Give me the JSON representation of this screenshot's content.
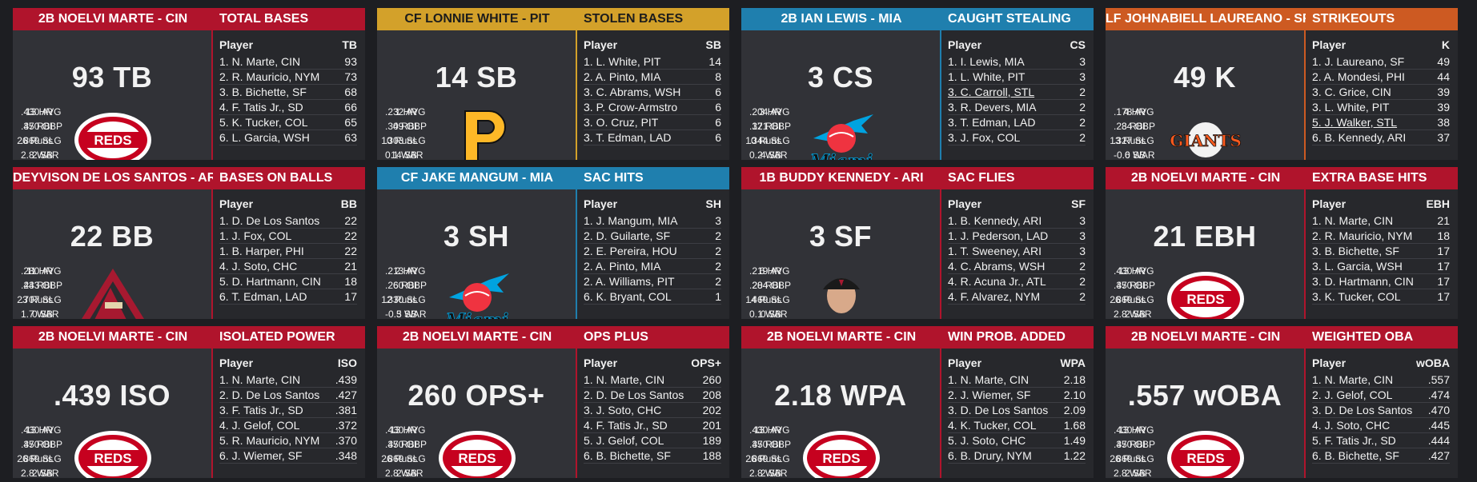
{
  "cards": [
    {
      "player": "2B NOELVI MARTE - CIN",
      "category": "TOTAL BASES",
      "big": "93 TB",
      "theme": "red",
      "logo": "reds-logo",
      "stats_left": [
        ".430 AVG",
        ".470 OBP",
        ".869 SLG",
        "2.8 WAR"
      ],
      "stats_right": [
        "13 HR",
        "35 RBI",
        "26 Runs",
        "2 SB"
      ],
      "col_player": "Player",
      "col_stat": "TB",
      "rows": [
        {
          "name": "1. N. Marte, CIN",
          "value": "93"
        },
        {
          "name": "2. R. Mauricio, NYM",
          "value": "73"
        },
        {
          "name": "3. B. Bichette, SF",
          "value": "68"
        },
        {
          "name": "4. F. Tatis Jr., SD",
          "value": "66"
        },
        {
          "name": "5. K. Tucker, COL",
          "value": "65"
        },
        {
          "name": "6. L. Garcia, WSH",
          "value": "63"
        }
      ]
    },
    {
      "player": "CF LONNIE WHITE - PIT",
      "category": "STOLEN BASES",
      "big": "14 SB",
      "theme": "gold",
      "logo": "pirates-logo",
      "stats_left": [
        ".232 AVG",
        ".309 OBP",
        ".303 SLG",
        "0.1 WAR"
      ],
      "stats_right": [
        "1 HR",
        "4 RBI",
        "10 Runs",
        "14 SB"
      ],
      "col_player": "Player",
      "col_stat": "SB",
      "rows": [
        {
          "name": "1. L. White, PIT",
          "value": "14"
        },
        {
          "name": "2. A. Pinto, MIA",
          "value": "8"
        },
        {
          "name": "3. C. Abrams, WSH",
          "value": "6"
        },
        {
          "name": "3. P. Crow-Armstro",
          "value": "6"
        },
        {
          "name": "3. O. Cruz, PIT",
          "value": "6"
        },
        {
          "name": "3. T. Edman, LAD",
          "value": "6"
        }
      ]
    },
    {
      "player": "2B IAN LEWIS - MIA",
      "category": "CAUGHT STEALING",
      "big": "3 CS",
      "theme": "blue",
      "logo": "marlins-logo",
      "logo_text": "Miami",
      "stats_left": [
        ".204 AVG",
        ".321 OBP",
        ".344 SLG",
        "0.2 WAR"
      ],
      "stats_right": [
        "3 HR",
        "17 RBI",
        "10 Runs",
        "4 SB"
      ],
      "col_player": "Player",
      "col_stat": "CS",
      "rows": [
        {
          "name": "1. I. Lewis, MIA",
          "value": "3"
        },
        {
          "name": "1. L. White, PIT",
          "value": "3"
        },
        {
          "name": "3. C. Carroll, STL",
          "value": "2",
          "hl": true
        },
        {
          "name": "3. R. Devers, MIA",
          "value": "2"
        },
        {
          "name": "3. T. Edman, LAD",
          "value": "2"
        },
        {
          "name": "3. J. Fox, COL",
          "value": "2"
        }
      ]
    },
    {
      "player": "LF JOHNABIELL LAUREANO - SF",
      "category": "STRIKEOUTS",
      "big": "49 K",
      "theme": "orange",
      "logo": "giants-logo",
      "logo_text": "GIANTS",
      "stats_left": [
        ".178 AVG",
        ".234 OBP",
        ".327 SLG",
        "-0.6 WAR"
      ],
      "stats_right": [
        "4 HR",
        "8 RBI",
        "13 Runs",
        "0 SB"
      ],
      "col_player": "Player",
      "col_stat": "K",
      "rows": [
        {
          "name": "1. J. Laureano, SF",
          "value": "49"
        },
        {
          "name": "2. A. Mondesi, PHI",
          "value": "44"
        },
        {
          "name": "3. C. Grice, CIN",
          "value": "39"
        },
        {
          "name": "3. L. White, PIT",
          "value": "39"
        },
        {
          "name": "5. J. Walker, STL",
          "value": "38",
          "hl": true
        },
        {
          "name": "6. B. Kennedy, ARI",
          "value": "37"
        }
      ]
    },
    {
      "player": "DEYVISON DE LOS SANTOS - ARI",
      "category": "BASES ON BALLS",
      "big": "22 BB",
      "theme": "red",
      "logo": "diamondbacks-logo",
      "stats_left": [
        ".280 AVG",
        ".433 OBP",
        ".707 SLG",
        "1.7 WAR"
      ],
      "stats_right": [
        "11 HR",
        "24 RBI",
        "23 Runs",
        "0 SB"
      ],
      "col_player": "Player",
      "col_stat": "BB",
      "rows": [
        {
          "name": "1. D. De Los Santos",
          "value": "22"
        },
        {
          "name": "1. J. Fox, COL",
          "value": "22"
        },
        {
          "name": "1. B. Harper, PHI",
          "value": "22"
        },
        {
          "name": "4. J. Soto, CHC",
          "value": "21"
        },
        {
          "name": "5. D. Hartmann, CIN",
          "value": "18"
        },
        {
          "name": "6. T. Edman, LAD",
          "value": "17"
        }
      ]
    },
    {
      "player": "CF JAKE MANGUM - MIA",
      "category": "SAC HITS",
      "big": "3 SH",
      "theme": "blue",
      "logo": "marlins-logo",
      "logo_text": "Miami",
      "stats_left": [
        ".213 AVG",
        ".260 OBP",
        ".330 SLG",
        "-0.3 WAR"
      ],
      "stats_right": [
        "2 HR",
        "6 RBI",
        "12 Runs",
        "5 SB"
      ],
      "col_player": "Player",
      "col_stat": "SH",
      "rows": [
        {
          "name": "1. J. Mangum, MIA",
          "value": "3"
        },
        {
          "name": "2. D. Guilarte, SF",
          "value": "2"
        },
        {
          "name": "2. E. Pereira, HOU",
          "value": "2"
        },
        {
          "name": "2. A. Pinto, MIA",
          "value": "2"
        },
        {
          "name": "2. A. Williams, PIT",
          "value": "2"
        },
        {
          "name": "6. K. Bryant, COL",
          "value": "1"
        }
      ]
    },
    {
      "player": "1B BUDDY KENNEDY - ARI",
      "category": "SAC FLIES",
      "big": "3 SF",
      "theme": "red",
      "logo": "player-photo",
      "stats_left": [
        ".219 AVG",
        ".284 OBP",
        ".469 SLG",
        "0.1 WAR"
      ],
      "stats_right": [
        "6 HR",
        "20 RBI",
        "14 Runs",
        "0 SB"
      ],
      "col_player": "Player",
      "col_stat": "SF",
      "rows": [
        {
          "name": "1. B. Kennedy, ARI",
          "value": "3"
        },
        {
          "name": "1. J. Pederson, LAD",
          "value": "3"
        },
        {
          "name": "1. T. Sweeney, ARI",
          "value": "3"
        },
        {
          "name": "4. C. Abrams, WSH",
          "value": "2"
        },
        {
          "name": "4. R. Acuna Jr., ATL",
          "value": "2"
        },
        {
          "name": "4. F. Alvarez, NYM",
          "value": "2"
        }
      ]
    },
    {
      "player": "2B NOELVI MARTE - CIN",
      "category": "EXTRA BASE HITS",
      "big": "21 EBH",
      "theme": "red",
      "logo": "reds-logo",
      "stats_left": [
        ".430 AVG",
        ".470 OBP",
        ".869 SLG",
        "2.8 WAR"
      ],
      "stats_right": [
        "13 HR",
        "35 RBI",
        "26 Runs",
        "2 SB"
      ],
      "col_player": "Player",
      "col_stat": "EBH",
      "rows": [
        {
          "name": "1. N. Marte, CIN",
          "value": "21"
        },
        {
          "name": "2. R. Mauricio, NYM",
          "value": "18"
        },
        {
          "name": "3. B. Bichette, SF",
          "value": "17"
        },
        {
          "name": "3. L. Garcia, WSH",
          "value": "17"
        },
        {
          "name": "3. D. Hartmann, CIN",
          "value": "17"
        },
        {
          "name": "3. K. Tucker, COL",
          "value": "17"
        }
      ]
    },
    {
      "player": "2B NOELVI MARTE - CIN",
      "category": "ISOLATED POWER",
      "big": ".439 ISO",
      "theme": "red",
      "logo": "reds-logo",
      "stats_left": [
        ".430 AVG",
        ".470 OBP",
        ".869 SLG",
        "2.8 WAR"
      ],
      "stats_right": [
        "13 HR",
        "35 RBI",
        "26 Runs",
        "2 SB"
      ],
      "col_player": "Player",
      "col_stat": "ISO",
      "rows": [
        {
          "name": "1. N. Marte, CIN",
          "value": ".439"
        },
        {
          "name": "2. D. De Los Santos",
          "value": ".427"
        },
        {
          "name": "3. F. Tatis Jr., SD",
          "value": ".381"
        },
        {
          "name": "4. J. Gelof, COL",
          "value": ".372"
        },
        {
          "name": "5. R. Mauricio, NYM",
          "value": ".370"
        },
        {
          "name": "6. J. Wiemer, SF",
          "value": ".348"
        }
      ]
    },
    {
      "player": "2B NOELVI MARTE - CIN",
      "category": "OPS PLUS",
      "big": "260 OPS+",
      "theme": "red",
      "logo": "reds-logo",
      "stats_left": [
        ".430 AVG",
        ".470 OBP",
        ".869 SLG",
        "2.8 WAR"
      ],
      "stats_right": [
        "13 HR",
        "35 RBI",
        "26 Runs",
        "2 SB"
      ],
      "col_player": "Player",
      "col_stat": "OPS+",
      "rows": [
        {
          "name": "1. N. Marte, CIN",
          "value": "260"
        },
        {
          "name": "2. D. De Los Santos",
          "value": "208"
        },
        {
          "name": "3. J. Soto, CHC",
          "value": "202"
        },
        {
          "name": "4. F. Tatis Jr., SD",
          "value": "201"
        },
        {
          "name": "5. J. Gelof, COL",
          "value": "189"
        },
        {
          "name": "6. B. Bichette, SF",
          "value": "188"
        }
      ]
    },
    {
      "player": "2B NOELVI MARTE - CIN",
      "category": "WIN PROB. ADDED",
      "big": "2.18 WPA",
      "theme": "red",
      "logo": "reds-logo",
      "stats_left": [
        ".430 AVG",
        ".470 OBP",
        ".869 SLG",
        "2.8 WAR"
      ],
      "stats_right": [
        "13 HR",
        "35 RBI",
        "26 Runs",
        "2 SB"
      ],
      "col_player": "Player",
      "col_stat": "WPA",
      "rows": [
        {
          "name": "1. N. Marte, CIN",
          "value": "2.18"
        },
        {
          "name": "2. J. Wiemer, SF",
          "value": "2.10"
        },
        {
          "name": "3. D. De Los Santos",
          "value": "2.09"
        },
        {
          "name": "4. K. Tucker, COL",
          "value": "1.68"
        },
        {
          "name": "5. J. Soto, CHC",
          "value": "1.49"
        },
        {
          "name": "6. B. Drury, NYM",
          "value": "1.22"
        }
      ]
    },
    {
      "player": "2B NOELVI MARTE - CIN",
      "category": "WEIGHTED OBA",
      "big": ".557 wOBA",
      "theme": "red",
      "logo": "reds-logo",
      "stats_left": [
        ".430 AVG",
        ".470 OBP",
        ".869 SLG",
        "2.8 WAR"
      ],
      "stats_right": [
        "13 HR",
        "35 RBI",
        "26 Runs",
        "2 SB"
      ],
      "col_player": "Player",
      "col_stat": "wOBA",
      "rows": [
        {
          "name": "1. N. Marte, CIN",
          "value": ".557"
        },
        {
          "name": "2. J. Gelof, COL",
          "value": ".474"
        },
        {
          "name": "3. D. De Los Santos",
          "value": ".470"
        },
        {
          "name": "4. J. Soto, CHC",
          "value": ".445"
        },
        {
          "name": "5. F. Tatis Jr., SD",
          "value": ".444"
        },
        {
          "name": "6. B. Bichette, SF",
          "value": ".427"
        }
      ]
    }
  ],
  "logo_texts": {
    "reds": "REDS"
  }
}
